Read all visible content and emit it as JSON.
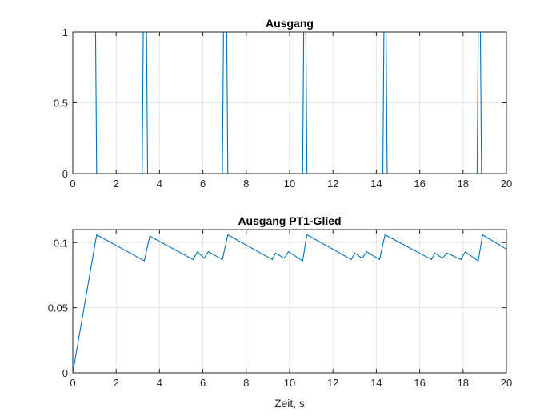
{
  "chart_data": [
    {
      "type": "line",
      "title": "Ausgang",
      "xlabel": "",
      "ylabel": "",
      "xlim": [
        0,
        20
      ],
      "ylim": [
        0,
        1
      ],
      "xticks": [
        "0",
        "2",
        "4",
        "6",
        "8",
        "10",
        "12",
        "14",
        "16",
        "18",
        "20"
      ],
      "yticks": [
        "0",
        "0.5",
        "1"
      ],
      "grid": true,
      "line_color": "#0072BD",
      "series": [
        {
          "x": [
            0,
            1.05,
            1.1,
            3.2,
            3.25,
            3.4,
            3.45,
            6.9,
            6.95,
            7.1,
            7.15,
            10.6,
            10.65,
            10.75,
            10.8,
            14.3,
            14.35,
            14.45,
            14.5,
            18.65,
            18.7,
            18.8,
            18.85,
            20
          ],
          "y": [
            1,
            1,
            0,
            0,
            1,
            1,
            0,
            0,
            1,
            1,
            0,
            0,
            1,
            1,
            0,
            0,
            1,
            1,
            0,
            0,
            1,
            1,
            0,
            0
          ]
        }
      ]
    },
    {
      "type": "line",
      "title": "Ausgang PT1-Glied",
      "xlabel": "Zeit, s",
      "ylabel": "",
      "xlim": [
        0,
        20
      ],
      "ylim": [
        0,
        0.11
      ],
      "xticks": [
        "0",
        "2",
        "4",
        "6",
        "8",
        "10",
        "12",
        "14",
        "16",
        "18",
        "20"
      ],
      "yticks": [
        "0",
        "0.05",
        "0.1"
      ],
      "grid": true,
      "line_color": "#0072BD",
      "series": [
        {
          "x": [
            0,
            1.1,
            3.3,
            3.55,
            5.55,
            5.75,
            6.05,
            6.25,
            6.9,
            7.15,
            9.2,
            9.35,
            9.75,
            9.95,
            10.6,
            10.8,
            12.85,
            13.0,
            13.35,
            13.55,
            14.15,
            14.4,
            16.55,
            16.7,
            17.05,
            17.25,
            17.9,
            18.1,
            18.7,
            18.9,
            20.0
          ],
          "y": [
            0,
            0.106,
            0.086,
            0.105,
            0.087,
            0.093,
            0.088,
            0.093,
            0.087,
            0.106,
            0.087,
            0.092,
            0.088,
            0.093,
            0.086,
            0.106,
            0.087,
            0.092,
            0.088,
            0.093,
            0.087,
            0.106,
            0.087,
            0.092,
            0.088,
            0.092,
            0.087,
            0.093,
            0.086,
            0.106,
            0.095
          ]
        }
      ]
    }
  ]
}
